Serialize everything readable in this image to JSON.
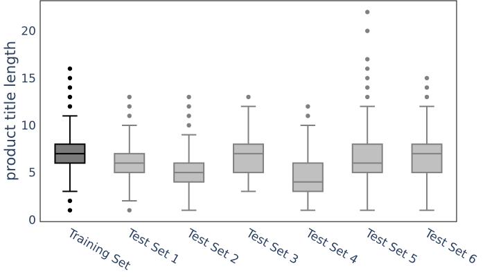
{
  "chart_data": {
    "type": "box",
    "title": "",
    "xlabel": "",
    "ylabel": "product title length",
    "ylim": [
      -0.2,
      23.2
    ],
    "yticks": [
      0,
      5,
      10,
      15,
      20
    ],
    "grid": false,
    "legend": "none",
    "categories": [
      "Training Set",
      "Test Set 1",
      "Test Set 2",
      "Test Set 3",
      "Test Set 4",
      "Test Set 5",
      "Test Set 6"
    ],
    "boxes": [
      {
        "category": "Training Set",
        "whisker_low": 3,
        "q1": 6,
        "median": 7,
        "q3": 8,
        "whisker_high": 11,
        "outliers": [
          1,
          2,
          12,
          13,
          14,
          15,
          16
        ],
        "fill": "#7a7a7a",
        "line": "#000000",
        "marker": "#000000"
      },
      {
        "category": "Test Set 1",
        "whisker_low": 2,
        "q1": 5,
        "median": 6,
        "q3": 7,
        "whisker_high": 10,
        "outliers": [
          1,
          11,
          12,
          13
        ],
        "fill": "#c0c0c0",
        "line": "#808080",
        "marker": "#808080"
      },
      {
        "category": "Test Set 2",
        "whisker_low": 1,
        "q1": 4,
        "median": 5,
        "q3": 6,
        "whisker_high": 9,
        "outliers": [
          10,
          11,
          12,
          13
        ],
        "fill": "#c0c0c0",
        "line": "#808080",
        "marker": "#808080"
      },
      {
        "category": "Test Set 3",
        "whisker_low": 3,
        "q1": 5,
        "median": 7,
        "q3": 8,
        "whisker_high": 12,
        "outliers": [
          13
        ],
        "fill": "#c0c0c0",
        "line": "#808080",
        "marker": "#808080"
      },
      {
        "category": "Test Set 4",
        "whisker_low": 1,
        "q1": 3,
        "median": 4,
        "q3": 6,
        "whisker_high": 10,
        "outliers": [
          11,
          12
        ],
        "fill": "#c0c0c0",
        "line": "#808080",
        "marker": "#808080"
      },
      {
        "category": "Test Set 5",
        "whisker_low": 1,
        "q1": 5,
        "median": 6,
        "q3": 8,
        "whisker_high": 12,
        "outliers": [
          13,
          14,
          15,
          16,
          17,
          20,
          22
        ],
        "fill": "#c0c0c0",
        "line": "#808080",
        "marker": "#808080"
      },
      {
        "category": "Test Set 6",
        "whisker_low": 1,
        "q1": 5,
        "median": 7,
        "q3": 8,
        "whisker_high": 12,
        "outliers": [
          13,
          14,
          15
        ],
        "fill": "#c0c0c0",
        "line": "#808080",
        "marker": "#808080"
      }
    ]
  }
}
